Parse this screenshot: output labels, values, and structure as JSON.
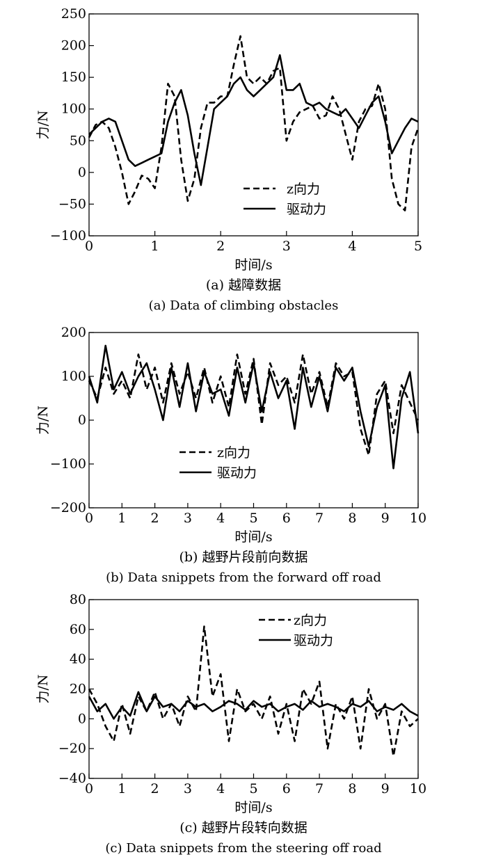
{
  "chart_data": [
    {
      "type": "line",
      "panel": "a",
      "caption_cn": "(a) 越障数据",
      "caption_en": "(a) Data of climbing obstacles",
      "xlabel": "时间/s",
      "ylabel": "力/N",
      "xlim": [
        0,
        5
      ],
      "ylim": [
        -100,
        250
      ],
      "xticks": [
        0,
        1,
        2,
        3,
        4,
        5
      ],
      "yticks": [
        -100,
        -50,
        0,
        50,
        100,
        150,
        200,
        250
      ],
      "grid": false,
      "legend": {
        "placement": "lower-center",
        "entries": [
          "z向力",
          "驱动力"
        ]
      },
      "series": [
        {
          "name": "z向力",
          "style": "dashed",
          "color": "#000000",
          "x": [
            0,
            0.1,
            0.2,
            0.3,
            0.4,
            0.5,
            0.6,
            0.7,
            0.8,
            0.9,
            1.0,
            1.1,
            1.2,
            1.3,
            1.4,
            1.5,
            1.6,
            1.7,
            1.8,
            1.9,
            2.0,
            2.1,
            2.2,
            2.3,
            2.4,
            2.5,
            2.6,
            2.7,
            2.8,
            2.9,
            3.0,
            3.1,
            3.2,
            3.3,
            3.4,
            3.5,
            3.6,
            3.7,
            3.8,
            3.9,
            4.0,
            4.1,
            4.2,
            4.3,
            4.4,
            4.5,
            4.6,
            4.7,
            4.8,
            4.9,
            5.0
          ],
          "y": [
            55,
            75,
            80,
            70,
            40,
            0,
            -50,
            -30,
            -5,
            -10,
            -25,
            40,
            140,
            120,
            20,
            -45,
            -10,
            70,
            110,
            110,
            120,
            120,
            170,
            215,
            150,
            140,
            150,
            140,
            160,
            165,
            50,
            80,
            95,
            100,
            105,
            85,
            90,
            120,
            100,
            60,
            20,
            80,
            100,
            105,
            140,
            100,
            -10,
            -50,
            -60,
            40,
            70
          ]
        },
        {
          "name": "驱动力",
          "style": "solid",
          "color": "#000000",
          "x": [
            0,
            0.1,
            0.2,
            0.3,
            0.4,
            0.5,
            0.6,
            0.7,
            0.8,
            0.9,
            1.0,
            1.1,
            1.2,
            1.3,
            1.4,
            1.5,
            1.6,
            1.7,
            1.8,
            1.9,
            2.0,
            2.1,
            2.2,
            2.3,
            2.4,
            2.5,
            2.6,
            2.7,
            2.8,
            2.9,
            3.0,
            3.1,
            3.2,
            3.3,
            3.4,
            3.5,
            3.6,
            3.7,
            3.8,
            3.9,
            4.0,
            4.1,
            4.2,
            4.3,
            4.4,
            4.5,
            4.6,
            4.7,
            4.8,
            4.9,
            5.0
          ],
          "y": [
            60,
            70,
            80,
            85,
            80,
            50,
            20,
            10,
            15,
            20,
            25,
            30,
            80,
            110,
            130,
            90,
            30,
            -20,
            40,
            100,
            110,
            120,
            140,
            150,
            130,
            120,
            130,
            140,
            150,
            185,
            130,
            130,
            140,
            110,
            105,
            110,
            100,
            95,
            90,
            100,
            85,
            70,
            90,
            110,
            120,
            80,
            30,
            50,
            70,
            85,
            80
          ]
        }
      ]
    },
    {
      "type": "line",
      "panel": "b",
      "caption_cn": "(b) 越野片段前向数据",
      "caption_en": "(b) Data snippets from the forward off road",
      "xlabel": "时间/s",
      "ylabel": "力/N",
      "xlim": [
        0,
        10
      ],
      "ylim": [
        -200,
        200
      ],
      "xticks": [
        0,
        1,
        2,
        3,
        4,
        5,
        6,
        7,
        8,
        9,
        10
      ],
      "yticks": [
        -200,
        -100,
        0,
        100,
        200
      ],
      "grid": false,
      "legend": {
        "placement": "lower-left",
        "entries": [
          "z向力",
          "驱动力"
        ]
      },
      "series": [
        {
          "name": "z向力",
          "style": "dashed",
          "color": "#000000",
          "x": [
            0,
            0.25,
            0.5,
            0.75,
            1.0,
            1.25,
            1.5,
            1.75,
            2.0,
            2.25,
            2.5,
            2.75,
            3.0,
            3.25,
            3.5,
            3.75,
            4.0,
            4.25,
            4.5,
            4.75,
            5.0,
            5.25,
            5.5,
            5.75,
            6.0,
            6.25,
            6.5,
            6.75,
            7.0,
            7.25,
            7.5,
            7.75,
            8.0,
            8.25,
            8.5,
            8.75,
            9.0,
            9.25,
            9.5,
            9.75,
            10.0
          ],
          "y": [
            90,
            50,
            120,
            60,
            90,
            50,
            150,
            70,
            120,
            40,
            130,
            60,
            110,
            50,
            120,
            40,
            100,
            30,
            150,
            60,
            140,
            -10,
            130,
            80,
            100,
            40,
            150,
            60,
            110,
            30,
            130,
            100,
            110,
            -20,
            -80,
            60,
            90,
            -30,
            80,
            40,
            0
          ]
        },
        {
          "name": "驱动力",
          "style": "solid",
          "color": "#000000",
          "x": [
            0,
            0.25,
            0.5,
            0.75,
            1.0,
            1.25,
            1.5,
            1.75,
            2.0,
            2.25,
            2.5,
            2.75,
            3.0,
            3.25,
            3.5,
            3.75,
            4.0,
            4.25,
            4.5,
            4.75,
            5.0,
            5.25,
            5.5,
            5.75,
            6.0,
            6.25,
            6.5,
            6.75,
            7.0,
            7.25,
            7.5,
            7.75,
            8.0,
            8.25,
            8.5,
            8.75,
            9.0,
            9.25,
            9.5,
            9.75,
            10.0
          ],
          "y": [
            100,
            40,
            170,
            70,
            110,
            60,
            100,
            130,
            70,
            0,
            120,
            30,
            130,
            20,
            110,
            60,
            70,
            10,
            120,
            40,
            130,
            20,
            110,
            50,
            90,
            -20,
            120,
            30,
            100,
            20,
            120,
            90,
            120,
            20,
            -60,
            30,
            80,
            -110,
            50,
            110,
            -30
          ]
        }
      ]
    },
    {
      "type": "line",
      "panel": "c",
      "caption_cn": "(c) 越野片段转向数据",
      "caption_en": "(c) Data snippets from the steering off road",
      "xlabel": "时间/s",
      "ylabel": "力/N",
      "xlim": [
        0,
        10
      ],
      "ylim": [
        -40,
        80
      ],
      "xticks": [
        0,
        1,
        2,
        3,
        4,
        5,
        6,
        7,
        8,
        9,
        10
      ],
      "yticks": [
        -40,
        -20,
        0,
        20,
        40,
        60,
        80
      ],
      "grid": false,
      "legend": {
        "placement": "top-right",
        "entries": [
          "z向力",
          "驱动力"
        ]
      },
      "series": [
        {
          "name": "z向力",
          "style": "dashed",
          "color": "#000000",
          "x": [
            0,
            0.25,
            0.5,
            0.75,
            1.0,
            1.25,
            1.5,
            1.75,
            2.0,
            2.25,
            2.5,
            2.75,
            3.0,
            3.25,
            3.5,
            3.75,
            4.0,
            4.25,
            4.5,
            4.75,
            5.0,
            5.25,
            5.5,
            5.75,
            6.0,
            6.25,
            6.5,
            6.75,
            7.0,
            7.25,
            7.5,
            7.75,
            8.0,
            8.25,
            8.5,
            8.75,
            9.0,
            9.25,
            9.5,
            9.75,
            10.0
          ],
          "y": [
            20,
            10,
            -5,
            -15,
            10,
            -10,
            15,
            5,
            18,
            0,
            10,
            -5,
            15,
            5,
            62,
            15,
            30,
            -15,
            20,
            5,
            10,
            0,
            15,
            -10,
            10,
            -15,
            20,
            10,
            25,
            -20,
            10,
            0,
            15,
            -20,
            20,
            0,
            10,
            -25,
            5,
            -5,
            0
          ]
        },
        {
          "name": "驱动力",
          "style": "solid",
          "color": "#000000",
          "x": [
            0,
            0.25,
            0.5,
            0.75,
            1.0,
            1.25,
            1.5,
            1.75,
            2.0,
            2.25,
            2.5,
            2.75,
            3.0,
            3.25,
            3.5,
            3.75,
            4.0,
            4.25,
            4.5,
            4.75,
            5.0,
            5.25,
            5.5,
            5.75,
            6.0,
            6.25,
            6.5,
            6.75,
            7.0,
            7.25,
            7.5,
            7.75,
            8.0,
            8.25,
            8.5,
            8.75,
            9.0,
            9.25,
            9.5,
            9.75,
            10.0
          ],
          "y": [
            15,
            5,
            10,
            0,
            8,
            2,
            18,
            5,
            15,
            8,
            10,
            5,
            12,
            8,
            10,
            5,
            8,
            12,
            10,
            6,
            12,
            8,
            10,
            5,
            8,
            10,
            6,
            12,
            8,
            10,
            8,
            5,
            10,
            8,
            12,
            5,
            8,
            6,
            10,
            5,
            2
          ]
        }
      ]
    }
  ]
}
